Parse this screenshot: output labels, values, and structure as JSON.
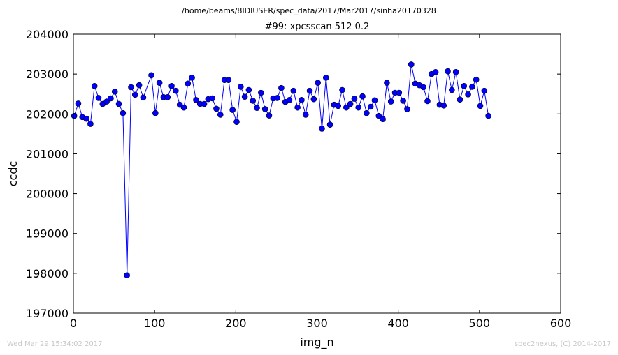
{
  "figure": {
    "suptitle": "/home/beams/8IDIUSER/spec_data/2017/Mar2017/sinha20170328",
    "footer_left": "Wed Mar 29 15:34:02 2017",
    "footer_right": "spec2nexus, (C) 2014-2017"
  },
  "chart_data": {
    "type": "line",
    "title": "#99: xpcsscan 512 0.2",
    "xlabel": "img_n",
    "ylabel": "ccdc",
    "xlim": [
      0,
      600
    ],
    "ylim": [
      197000,
      204000
    ],
    "xticks": [
      0,
      100,
      200,
      300,
      400,
      500,
      600
    ],
    "yticks": [
      197000,
      198000,
      199000,
      200000,
      201000,
      202000,
      203000,
      204000
    ],
    "grid": false,
    "line_color": "#0000ff",
    "marker_color": "#0000ff",
    "marker": "circle",
    "x": [
      1,
      6,
      11,
      16,
      21,
      26,
      31,
      36,
      41,
      46,
      51,
      56,
      61,
      66,
      71,
      76,
      81,
      86,
      96,
      101,
      106,
      111,
      116,
      121,
      126,
      131,
      136,
      141,
      146,
      151,
      156,
      161,
      166,
      171,
      176,
      181,
      186,
      191,
      196,
      201,
      206,
      211,
      216,
      221,
      226,
      231,
      236,
      241,
      246,
      251,
      256,
      261,
      266,
      271,
      276,
      281,
      286,
      291,
      296,
      301,
      306,
      311,
      316,
      321,
      326,
      331,
      336,
      341,
      346,
      351,
      356,
      361,
      366,
      371,
      376,
      381,
      386,
      391,
      396,
      401,
      406,
      411,
      416,
      421,
      426,
      431,
      436,
      441,
      446,
      451,
      456,
      461,
      466,
      471,
      476,
      481,
      486,
      491,
      496,
      501,
      506,
      511
    ],
    "y": [
      201950,
      202260,
      201920,
      201880,
      201750,
      202700,
      202400,
      202250,
      202310,
      202390,
      202560,
      202250,
      202020,
      197950,
      202670,
      202480,
      202720,
      202410,
      202970,
      202020,
      202780,
      202420,
      202420,
      202700,
      202580,
      202230,
      202160,
      202760,
      202910,
      202350,
      202250,
      202250,
      202370,
      202390,
      202130,
      201980,
      202850,
      202850,
      202100,
      201800,
      202680,
      202430,
      202600,
      202330,
      202150,
      202530,
      202120,
      201960,
      202390,
      202400,
      202650,
      202300,
      202350,
      202580,
      202160,
      202350,
      201980,
      202580,
      202370,
      202780,
      201630,
      202910,
      201730,
      202230,
      202200,
      202600,
      202160,
      202250,
      202380,
      202160,
      202440,
      202020,
      202180,
      202340,
      201950,
      201870,
      202780,
      202310,
      202530,
      202530,
      202330,
      202120,
      203240,
      202760,
      202720,
      202670,
      202320,
      203000,
      203050,
      202230,
      202210,
      203070,
      202600,
      203050,
      202360,
      202700,
      202490,
      202680,
      202860,
      202200,
      202580,
      201950
    ]
  }
}
